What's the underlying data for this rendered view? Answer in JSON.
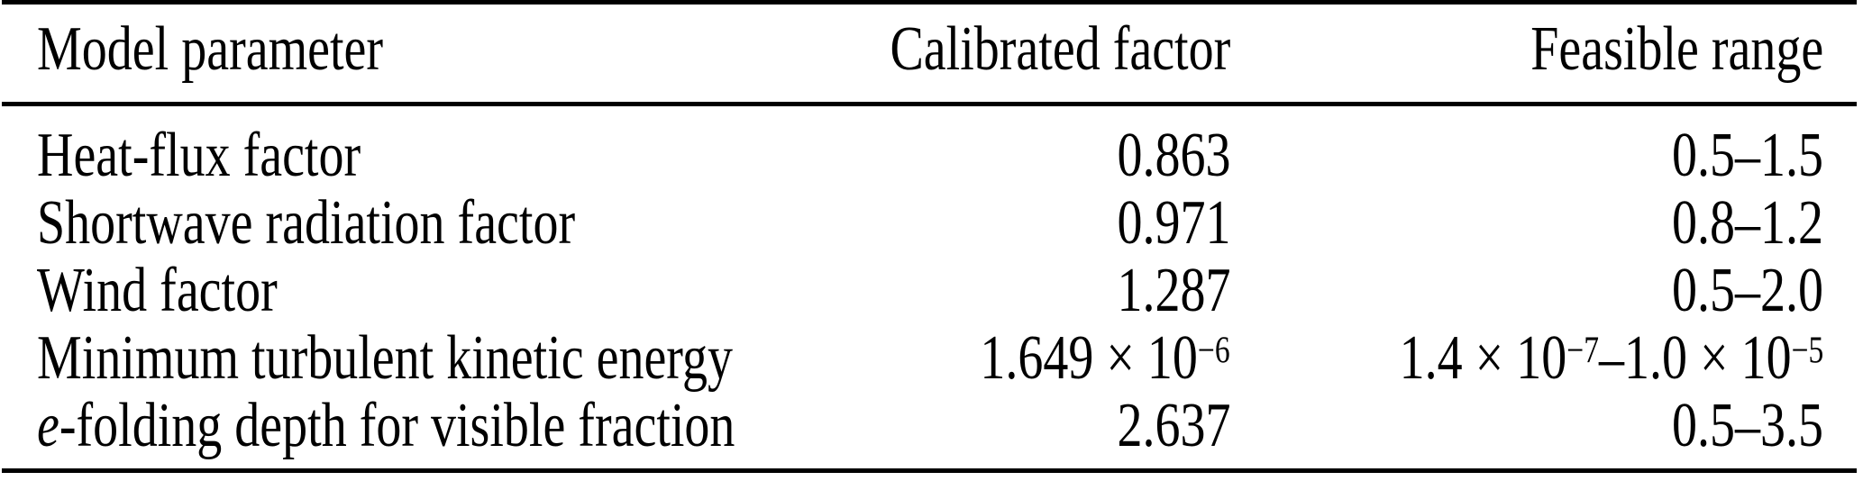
{
  "colors": {
    "text": "#000000",
    "background": "#ffffff",
    "rule": "#000000"
  },
  "table": {
    "columns": [
      {
        "label": "Model parameter",
        "align": "left"
      },
      {
        "label": "Calibrated factor",
        "align": "right"
      },
      {
        "label": "Feasible range",
        "align": "right"
      }
    ],
    "rows": [
      {
        "parameter": "Heat-flux factor",
        "calibrated": "0.863",
        "range": "0.5–1.5"
      },
      {
        "parameter": "Shortwave radiation factor",
        "calibrated": "0.971",
        "range": "0.8–1.2"
      },
      {
        "parameter": "Wind factor",
        "calibrated": "1.287",
        "range": "0.5–2.0"
      },
      {
        "parameter": "Minimum turbulent kinetic energy",
        "calibrated": "1.649 × 10^{−6}",
        "range": "1.4 × 10^{−7}–1.0 × 10^{−5}"
      },
      {
        "parameter": "*e*-folding depth for visible fraction",
        "calibrated": "2.637",
        "range": "0.5–3.5"
      }
    ]
  }
}
